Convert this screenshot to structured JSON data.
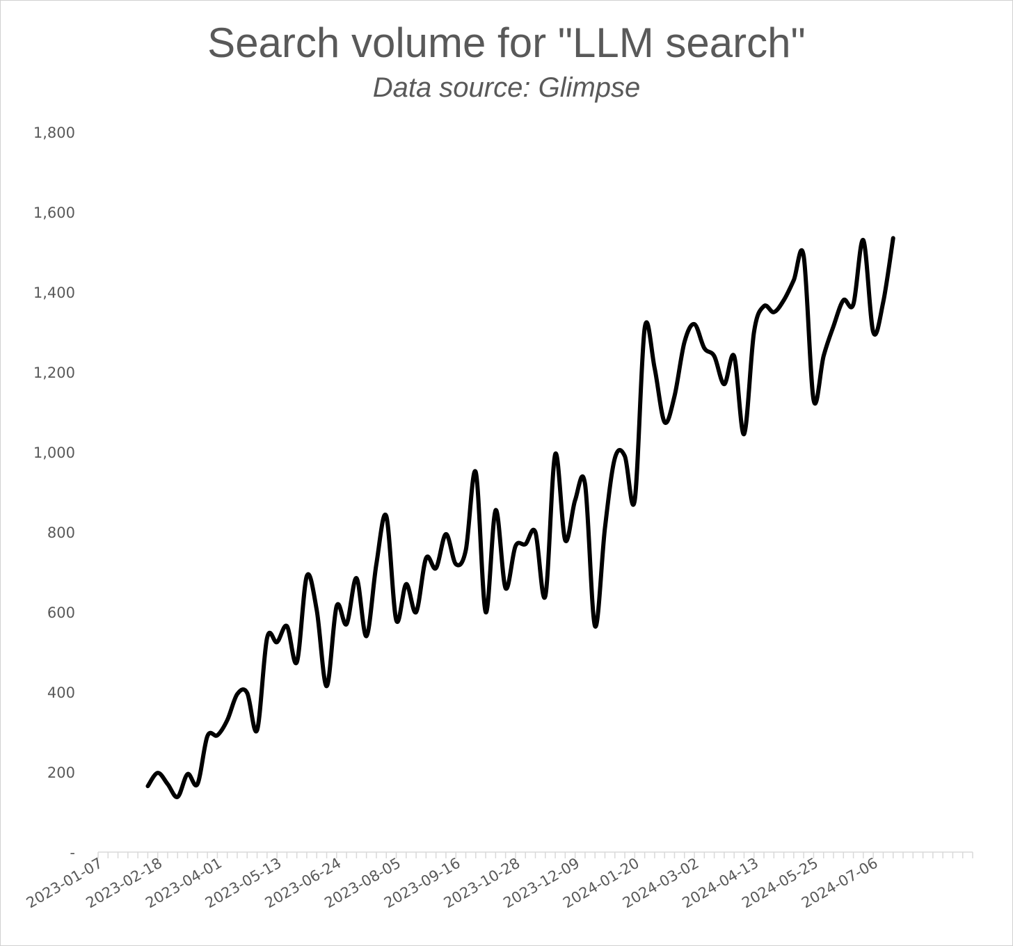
{
  "chart_data": {
    "type": "line",
    "title": "Search volume for \"LLM search\"",
    "subtitle": "Data source: Glimpse",
    "xlabel": "",
    "ylabel": "",
    "ylim": [
      0,
      1800
    ],
    "y_ticks": [
      0,
      200,
      400,
      600,
      800,
      1000,
      1200,
      1400,
      1600,
      1800
    ],
    "y_tick_labels": [
      "-",
      "200",
      "400",
      "600",
      "800",
      "1,000",
      "1,200",
      "1,400",
      "1,600",
      "1,800"
    ],
    "x_start": "2023-01-07",
    "x_interval_days": 7,
    "x_tick_labels": [
      "2023-01-07",
      "2023-02-18",
      "2023-04-01",
      "2023-05-13",
      "2023-06-24",
      "2023-08-05",
      "2023-09-16",
      "2023-10-28",
      "2023-12-09",
      "2024-01-20",
      "2024-03-02",
      "2024-04-13",
      "2024-05-25",
      "2024-07-06"
    ],
    "grid": false,
    "legend": "none",
    "series": [
      {
        "color": "#000000",
        "first_date": "2023-02-11",
        "values": [
          165,
          198,
          170,
          138,
          195,
          170,
          290,
          292,
          330,
          395,
          398,
          305,
          535,
          525,
          565,
          475,
          690,
          605,
          415,
          615,
          570,
          685,
          540,
          720,
          840,
          580,
          670,
          600,
          735,
          710,
          795,
          720,
          755,
          950,
          600,
          855,
          660,
          765,
          770,
          800,
          640,
          995,
          780,
          880,
          920,
          565,
          810,
          985,
          990,
          880,
          1310,
          1210,
          1075,
          1140,
          1275,
          1320,
          1260,
          1240,
          1170,
          1240,
          1045,
          1300,
          1365,
          1350,
          1380,
          1430,
          1490,
          1130,
          1240,
          1315,
          1380,
          1370,
          1530,
          1300,
          1375,
          1535
        ]
      }
    ]
  }
}
